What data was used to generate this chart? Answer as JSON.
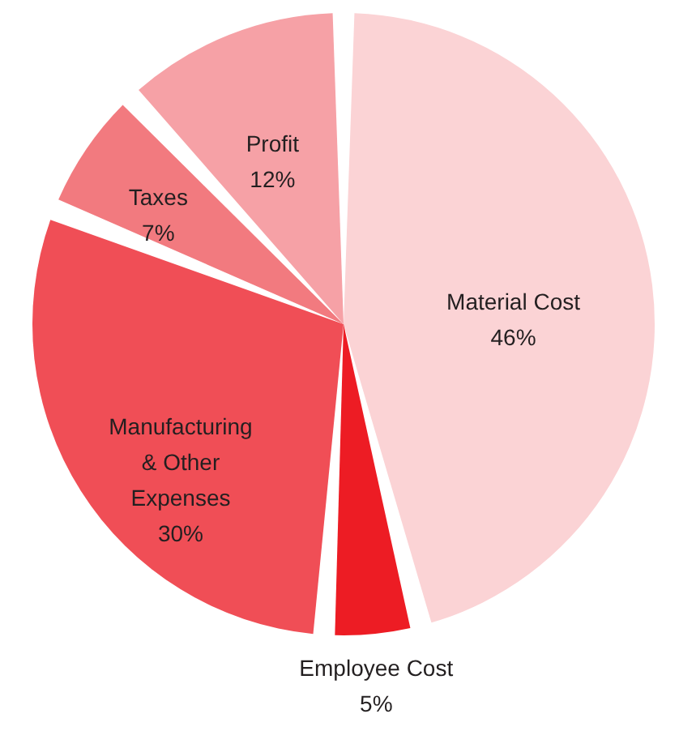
{
  "chart_data": {
    "type": "pie",
    "categories": [
      "Material Cost",
      "Employee Cost",
      "Manufacturing & Other Expenses",
      "Taxes",
      "Profit"
    ],
    "values": [
      46,
      5,
      30,
      7,
      12
    ],
    "value_labels": [
      "46%",
      "5%",
      "30%",
      "7%",
      "12%"
    ],
    "colors": [
      "#fbd3d5",
      "#ed1c24",
      "#f04e56",
      "#f27a7f",
      "#f6a1a6"
    ]
  }
}
